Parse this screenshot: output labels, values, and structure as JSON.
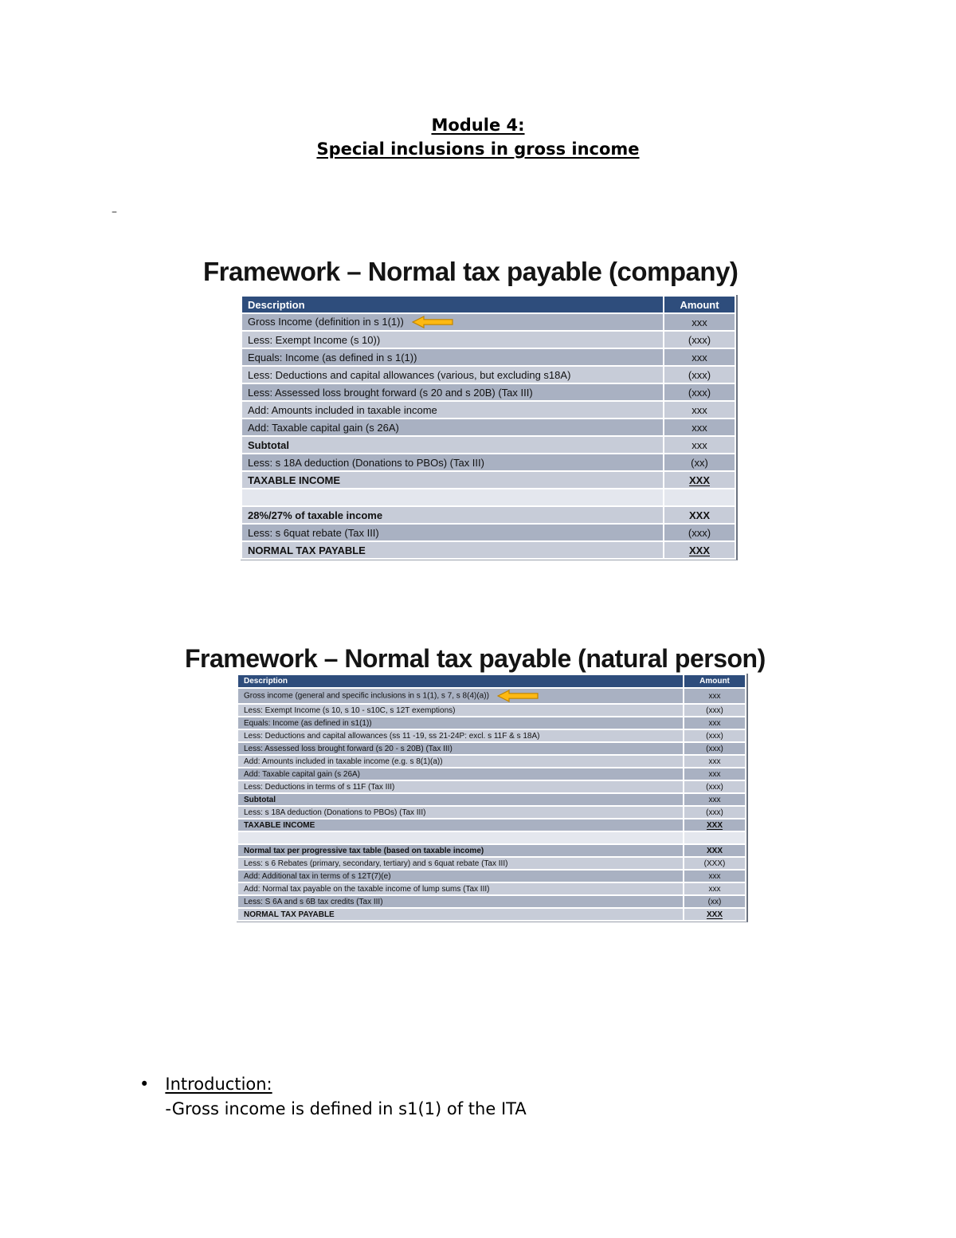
{
  "page": {
    "title_line1": "Module 4:",
    "title_line2": "Special inclusions in gross income",
    "dash": "–"
  },
  "slide1": {
    "heading": "Framework – Normal tax payable (company)",
    "columns": {
      "description": "Description",
      "amount": "Amount"
    },
    "rows": [
      {
        "desc": "Gross Income (definition in s 1(1))",
        "amount": "xxx",
        "arrow": true
      },
      {
        "desc": "Less: Exempt Income (s 10))",
        "amount": "(xxx)"
      },
      {
        "desc": "Equals: Income (as defined in s 1(1))",
        "amount": "xxx"
      },
      {
        "desc": "Less: Deductions and capital allowances (various, but excluding s18A)",
        "amount": "(xxx)"
      },
      {
        "desc": "Less: Assessed loss brought forward (s 20 and s 20B) (Tax III)",
        "amount": "(xxx)"
      },
      {
        "desc": "Add: Amounts included in taxable income",
        "amount": "xxx"
      },
      {
        "desc": "Add: Taxable capital gain (s 26A)",
        "amount": "xxx"
      },
      {
        "desc": "Subtotal",
        "amount": "xxx",
        "bold": true
      },
      {
        "desc": "Less: s 18A deduction (Donations to PBOs) (Tax III)",
        "amount": "(xx)"
      },
      {
        "desc": "TAXABLE INCOME",
        "amount": "XXX",
        "bold": true,
        "amount_bold": true,
        "amount_underline": true
      },
      {
        "desc": "",
        "amount": "",
        "spacer": true
      },
      {
        "desc": "28%/27% of taxable income",
        "amount": "XXX",
        "bold": true,
        "amount_bold": true
      },
      {
        "desc": "Less: s 6quat rebate (Tax III)",
        "amount": "(xxx)"
      },
      {
        "desc": "NORMAL TAX PAYABLE",
        "amount": "XXX",
        "bold": true,
        "amount_bold": true,
        "amount_underline": true
      }
    ]
  },
  "slide2": {
    "heading": "Framework – Normal tax payable (natural person)",
    "columns": {
      "description": "Description",
      "amount": "Amount"
    },
    "rows": [
      {
        "desc": "Gross income (general and specific inclusions in s 1(1), s 7, s 8(4)(a))",
        "amount": "xxx",
        "arrow": true
      },
      {
        "desc": "Less: Exempt Income (s 10, s 10 - s10C, s 12T exemptions)",
        "amount": "(xxx)"
      },
      {
        "desc": "Equals: Income (as defined in s1(1))",
        "amount": "xxx"
      },
      {
        "desc": "Less: Deductions and capital allowances (ss 11 -19, ss 21-24P: excl. s 11F & s 18A)",
        "amount": "(xxx)"
      },
      {
        "desc": "Less: Assessed loss brought forward (s 20 - s 20B) (Tax III)",
        "amount": "(xxx)"
      },
      {
        "desc": "Add: Amounts included in taxable income (e.g. s 8(1)(a))",
        "amount": "xxx"
      },
      {
        "desc": "Add: Taxable capital gain (s 26A)",
        "amount": "xxx"
      },
      {
        "desc": "Less: Deductions in terms of s 11F (Tax III)",
        "amount": "(xxx)"
      },
      {
        "desc": "Subtotal",
        "amount": "xxx",
        "bold": true
      },
      {
        "desc": "Less: s 18A deduction (Donations to PBOs) (Tax III)",
        "amount": "(xxx)"
      },
      {
        "desc": "TAXABLE INCOME",
        "amount": "XXX",
        "bold": true,
        "amount_bold": true,
        "amount_underline": true
      },
      {
        "desc": "",
        "amount": "",
        "spacer": true
      },
      {
        "desc": "Normal tax per progressive tax table (based on taxable income)",
        "amount": "XXX",
        "bold": true,
        "amount_bold": true
      },
      {
        "desc": "Less: s 6 Rebates (primary, secondary, tertiary) and s 6quat rebate (Tax III)",
        "amount": "(XXX)"
      },
      {
        "desc": "Add: Additional tax in terms of s 12T(7)(e)",
        "amount": "xxx"
      },
      {
        "desc": "Add: Normal tax payable on the taxable income of lump sums (Tax III)",
        "amount": "xxx"
      },
      {
        "desc": "Less: S 6A and s 6B tax credits (Tax III)",
        "amount": "(xx)"
      },
      {
        "desc": "NORMAL TAX PAYABLE",
        "amount": "XXX",
        "bold": true,
        "amount_bold": true,
        "amount_underline": true
      }
    ]
  },
  "intro": {
    "bullet": "•",
    "heading": "Introduction:",
    "text": "-Gross income is defined in s1(1) of the ITA"
  },
  "colors": {
    "table_header": "#2e4d7c",
    "band_dark": "#a9b1c2",
    "band_light": "#c7ccd8",
    "arrow_fill": "#FDB913",
    "arrow_stroke": "#BF8400"
  }
}
